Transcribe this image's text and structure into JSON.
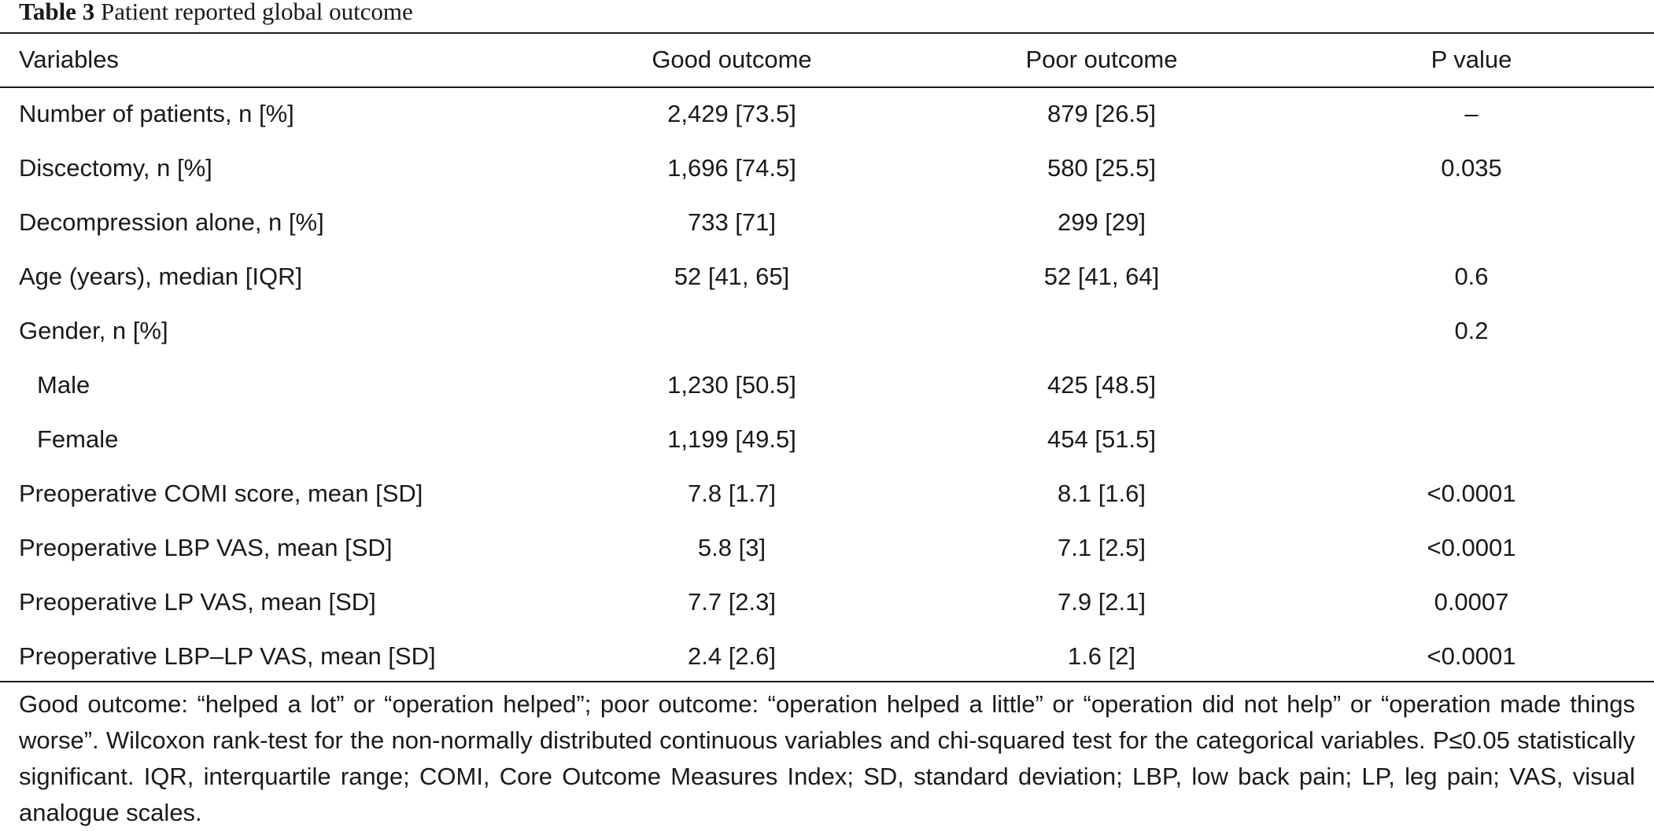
{
  "caption": {
    "label": "Table 3",
    "title": "Patient reported global outcome"
  },
  "table": {
    "headers": [
      "Variables",
      "Good outcome",
      "Poor outcome",
      "P value"
    ],
    "rows": [
      {
        "variable": "Number of patients, n [%]",
        "good": "2,429 [73.5]",
        "poor": "879 [26.5]",
        "p": "–"
      },
      {
        "variable": "Discectomy, n [%]",
        "good": "1,696 [74.5]",
        "poor": "580 [25.5]",
        "p": "0.035"
      },
      {
        "variable": "Decompression alone, n [%]",
        "good": "733 [71]",
        "poor": "299 [29]",
        "p": ""
      },
      {
        "variable": "Age (years), median [IQR]",
        "good": "52 [41, 65]",
        "poor": "52 [41, 64]",
        "p": "0.6"
      },
      {
        "variable": "Gender, n [%]",
        "good": "",
        "poor": "",
        "p": "0.2"
      },
      {
        "variable": "Male",
        "good": "1,230 [50.5]",
        "poor": "425 [48.5]",
        "p": ""
      },
      {
        "variable": "Female",
        "good": "1,199 [49.5]",
        "poor": "454 [51.5]",
        "p": ""
      },
      {
        "variable": "Preoperative COMI score, mean [SD]",
        "good": "7.8 [1.7]",
        "poor": "8.1 [1.6]",
        "p": "<0.0001"
      },
      {
        "variable": "Preoperative LBP VAS, mean [SD]",
        "good": "5.8 [3]",
        "poor": "7.1 [2.5]",
        "p": "<0.0001"
      },
      {
        "variable": "Preoperative LP VAS, mean [SD]",
        "good": "7.7 [2.3]",
        "poor": "7.9 [2.1]",
        "p": "0.0007"
      },
      {
        "variable": "Preoperative LBP–LP VAS, mean [SD]",
        "good": "2.4 [2.6]",
        "poor": "1.6 [2]",
        "p": "<0.0001"
      }
    ]
  },
  "footnote": "Good outcome: “helped a lot” or “operation helped”; poor outcome: “operation helped a little” or “operation did not help” or “operation made things worse”. Wilcoxon rank-test for the non-normally distributed continuous variables and chi-squared test for the categorical variables. P≤0.05 statistically significant. IQR, interquartile range; COMI, Core Outcome Measures Index; SD, standard deviation; LBP, low back pain; LP, leg pain; VAS, visual analogue scales."
}
